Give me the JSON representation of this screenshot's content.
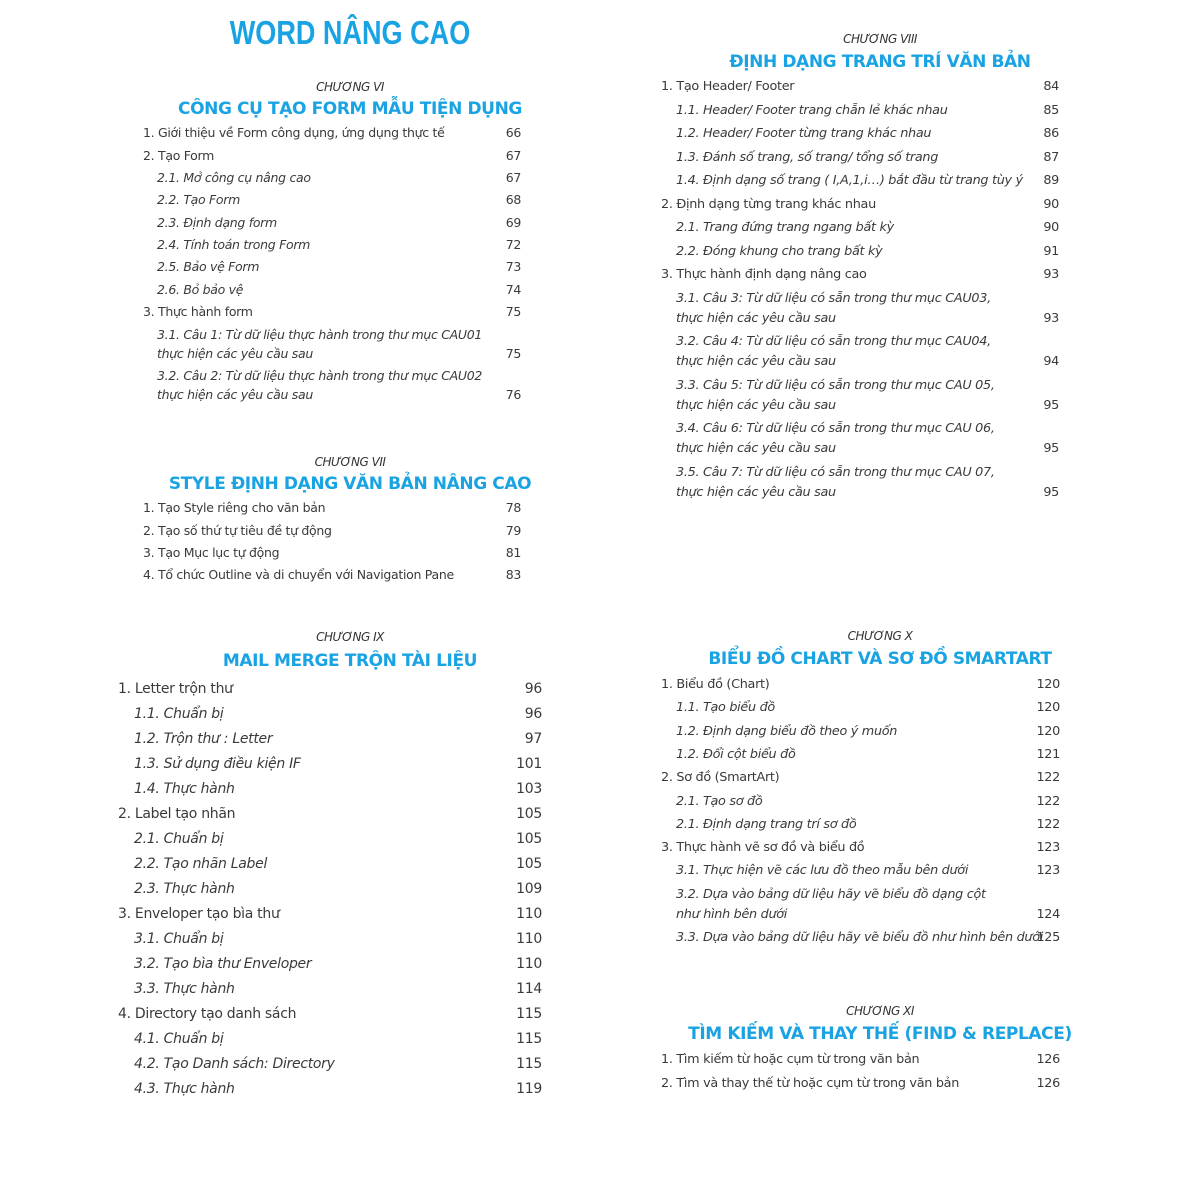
{
  "title": "WORD NÂNG CAO",
  "chapters": [
    {
      "label": "CHƯƠNG VI",
      "title": "CÔNG CỤ TẠO FORM MẪU TIỆN DỤNG",
      "entries": [
        {
          "text": "1. Giới thiệu về Form công dụng, ứng dụng thực tế",
          "page": "66",
          "level": 1
        },
        {
          "text": "2. Tạo Form",
          "page": "67",
          "level": 1
        },
        {
          "text": "2.1. Mở công cụ nâng cao",
          "page": "67",
          "level": 2
        },
        {
          "text": "2.2. Tạo Form",
          "page": "68",
          "level": 2
        },
        {
          "text": "2.3. Định dạng form",
          "page": "69",
          "level": 2
        },
        {
          "text": "2.4. Tính toán trong Form",
          "page": "72",
          "level": 2
        },
        {
          "text": "2.5. Bảo vệ Form",
          "page": "73",
          "level": 2
        },
        {
          "text": "2.6. Bỏ bảo vệ",
          "page": "74",
          "level": 2
        },
        {
          "text": "3. Thực hành form",
          "page": "75",
          "level": 1
        },
        {
          "text": "3.1. Câu 1: Từ dữ liệu thực hành trong thư mục CAU01\nthực hiện các yêu cầu sau",
          "page": "75",
          "level": 2
        },
        {
          "text": "3.2. Câu 2: Từ dữ liệu thực hành trong thư mục CAU02\nthực hiện các yêu cầu sau",
          "page": "76",
          "level": 2
        }
      ]
    },
    {
      "label": "CHƯƠNG VII",
      "title": "STYLE ĐỊNH DẠNG VĂN BẢN NÂNG CAO",
      "entries": [
        {
          "text": "1. Tạo Style riêng cho văn bản",
          "page": "78",
          "level": 1
        },
        {
          "text": "2. Tạo số thứ tự tiêu đề tự động",
          "page": "79",
          "level": 1
        },
        {
          "text": "3. Tạo Mục lục tự động",
          "page": "81",
          "level": 1
        },
        {
          "text": "4. Tổ chức Outline và di chuyển với Navigation Pane",
          "page": "83",
          "level": 1
        }
      ]
    },
    {
      "label": "CHƯƠNG VIII",
      "title": "ĐỊNH DẠNG TRANG TRÍ VĂN BẢN",
      "entries": [
        {
          "text": "1. Tạo Header/ Footer",
          "page": "84",
          "level": 1
        },
        {
          "text": "1.1.  Header/ Footer trang chẵn lẻ khác nhau",
          "page": "85",
          "level": 2
        },
        {
          "text": "1.2.  Header/ Footer từng trang khác nhau",
          "page": "86",
          "level": 2
        },
        {
          "text": "1.3. Đánh số trang, số trang/ tổng số trang",
          "page": "87",
          "level": 2
        },
        {
          "text": "1.4. Định dạng số trang ( I,A,1,i…) bắt đầu từ trang tùy ý",
          "page": "89",
          "level": 2
        },
        {
          "text": "2. Định dạng từng trang khác nhau",
          "page": "90",
          "level": 1
        },
        {
          "text": "2.1. Trang đứng trang ngang bất kỳ",
          "page": "90",
          "level": 2
        },
        {
          "text": "2.2. Đóng khung cho trang bất kỳ",
          "page": "91",
          "level": 2
        },
        {
          "text": "3. Thực hành định dạng nâng cao",
          "page": "93",
          "level": 1
        },
        {
          "text": "3.1. Câu 3:  Từ dữ liệu có sẵn trong thư mục CAU03,\nthực hiện các yêu cầu sau",
          "page": "93",
          "level": 2
        },
        {
          "text": "3.2. Câu 4:  Từ dữ liệu có sẵn trong thư mục CAU04,\nthực hiện các yêu cầu sau",
          "page": "94",
          "level": 2
        },
        {
          "text": "3.3. Câu 5: Từ dữ liệu có sẵn trong thư mục CAU 05,\nthực hiện các yêu cầu sau",
          "page": "95",
          "level": 2
        },
        {
          "text": "3.4. Câu 6: Từ dữ liệu có sẵn trong thư mục CAU 06,\nthực hiện các yêu cầu sau",
          "page": "95",
          "level": 2
        },
        {
          "text": "3.5. Câu 7: Từ dữ liệu có sẵn trong thư mục CAU 07,\nthực hiện các yêu cầu sau",
          "page": "95",
          "level": 2
        }
      ]
    },
    {
      "label": "CHƯƠNG IX",
      "title": "MAIL MERGE TRỘN TÀI LIỆU",
      "entries": [
        {
          "text": "1. Letter trộn thư",
          "page": "96",
          "level": 1
        },
        {
          "text": "1.1. Chuẩn bị",
          "page": "96",
          "level": 2
        },
        {
          "text": "1.2. Trộn thư : Letter",
          "page": "97",
          "level": 2
        },
        {
          "text": "1.3. Sử dụng điều kiện IF",
          "page": "101",
          "level": 2
        },
        {
          "text": "1.4. Thực hành",
          "page": "103",
          "level": 2
        },
        {
          "text": "2. Label tạo nhãn",
          "page": "105",
          "level": 1
        },
        {
          "text": "2.1. Chuẩn bị",
          "page": "105",
          "level": 2
        },
        {
          "text": "2.2. Tạo nhãn Label",
          "page": "105",
          "level": 2
        },
        {
          "text": "2.3. Thực hành",
          "page": "109",
          "level": 2
        },
        {
          "text": "3. Enveloper tạo bìa thư",
          "page": "110",
          "level": 1
        },
        {
          "text": "3.1. Chuẩn bị",
          "page": "110",
          "level": 2
        },
        {
          "text": "3.2. Tạo bìa thư Enveloper",
          "page": "110",
          "level": 2
        },
        {
          "text": "3.3. Thực hành",
          "page": "114",
          "level": 2
        },
        {
          "text": "4. Directory tạo danh sách",
          "page": "115",
          "level": 1
        },
        {
          "text": "4.1. Chuẩn bị",
          "page": "115",
          "level": 2
        },
        {
          "text": "4.2. Tạo Danh sách: Directory",
          "page": "115",
          "level": 2
        },
        {
          "text": "4.3. Thực hành",
          "page": "119",
          "level": 2
        }
      ]
    },
    {
      "label": "CHƯƠNG X",
      "title": "BIỂU ĐỒ CHART VÀ SƠ ĐỒ SMARTART",
      "entries": [
        {
          "text": "1. Biểu đồ (Chart)",
          "page": "120",
          "level": 1
        },
        {
          "text": "1.1. Tạo biểu đồ",
          "page": "120",
          "level": 2
        },
        {
          "text": "1.2. Định dạng biểu đồ theo ý muốn",
          "page": "120",
          "level": 2
        },
        {
          "text": "1.2. Đổi cột biểu đồ",
          "page": "121",
          "level": 2
        },
        {
          "text": "2. Sơ đồ (SmartArt)",
          "page": "122",
          "level": 1
        },
        {
          "text": "2.1. Tạo sơ đồ",
          "page": "122",
          "level": 2
        },
        {
          "text": "2.1. Định dạng trang trí sơ đồ",
          "page": "122",
          "level": 2
        },
        {
          "text": "3. Thực hành vẽ sơ đồ và biểu đồ",
          "page": "123",
          "level": 1
        },
        {
          "text": "3.1. Thực hiện vẽ các lưu đồ theo mẫu bên dưới",
          "page": "123",
          "level": 2
        },
        {
          "text": "3.2. Dựa vào bảng dữ liệu hãy vẽ biểu đồ dạng cột\nnhư hình bên dưới",
          "page": "124",
          "level": 2
        },
        {
          "text": "3.3. Dựa vào bảng dữ liệu hãy vẽ biểu đồ như hình bên dưới",
          "page": "125",
          "level": 2
        }
      ]
    },
    {
      "label": "CHƯƠNG XI",
      "title": "TÌM KIẾM VÀ THAY THẾ (FIND & REPLACE)",
      "entries": [
        {
          "text": "1. Tìm kiếm từ hoặc cụm từ trong văn bản",
          "page": "126",
          "level": 1
        },
        {
          "text": "2. Tìm và thay thế từ hoặc cụm từ trong văn bản",
          "page": "126",
          "level": 1
        }
      ]
    }
  ]
}
